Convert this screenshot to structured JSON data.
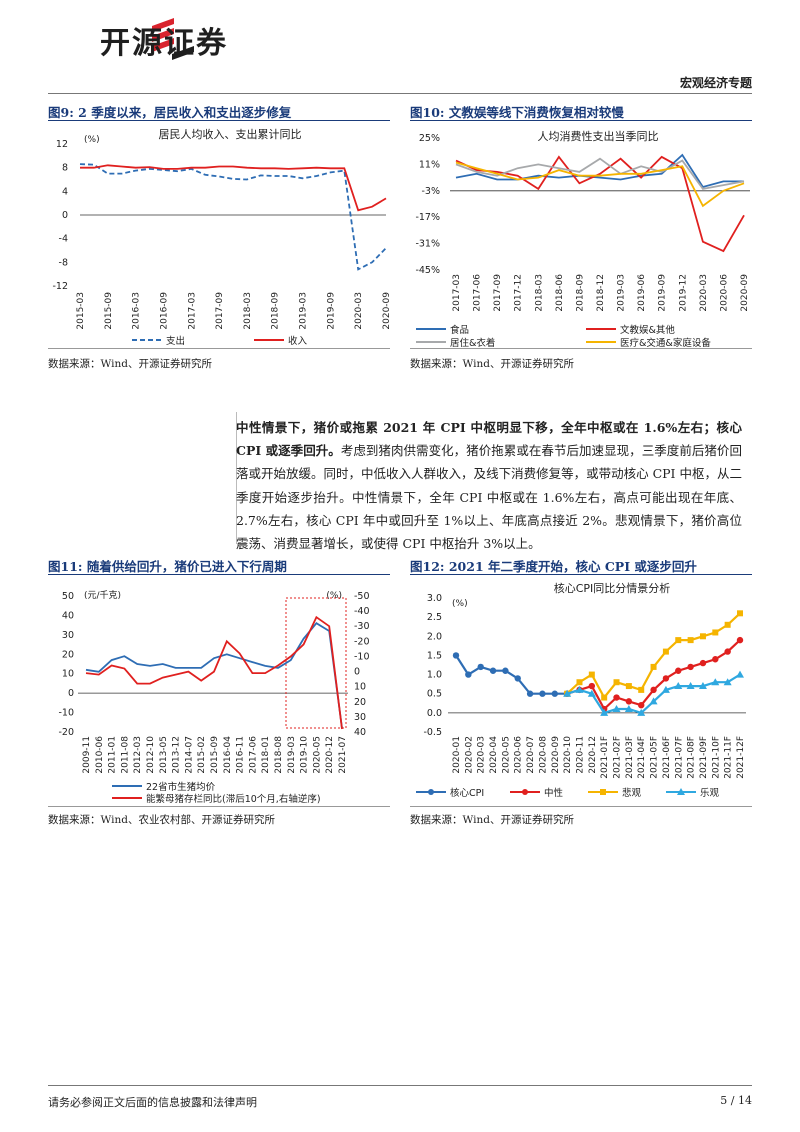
{
  "header": {
    "brand_name": "开源证券",
    "section_tag": "宏观经济专题"
  },
  "figures": {
    "fig9": {
      "title": "图9:  2 季度以来，居民收入和支出逐步修复",
      "source": "数据来源：Wind、开源证券研究所"
    },
    "fig10": {
      "title": "图10:  文教娱等线下消费恢复相对较慢",
      "source": "数据来源：Wind、开源证券研究所"
    },
    "fig11": {
      "title": "图11:  随着供给回升，猪价已进入下行周期",
      "source": "数据来源：Wind、农业农村部、开源证券研究所"
    },
    "fig12": {
      "title": "图12:  2021 年二季度开始，核心 CPI 或逐步回升",
      "source": "数据来源：Wind、开源证券研究所"
    }
  },
  "body": {
    "lead_bold": "中性情景下，猪价或拖累 2021 年 CPI 中枢明显下移，全年中枢或在 1.6%左右；核心 CPI 或逐季回升。",
    "text": "考虑到猪肉供需变化，猪价拖累或在春节后加速显现，三季度前后猪价回落或开始放缓。同时，中低收入人群收入，及线下消费修复等，或带动核心 CPI 中枢，从二季度开始逐步抬升。中性情景下，全年 CPI 中枢或在 1.6%左右，高点可能出现在年底、2.7%左右，核心 CPI 年中或回升至 1%以上、年底高点接近 2%。悲观情景下，猪价高位震荡、消费显著增长，或使得 CPI 中枢抬升 3%以上。"
  },
  "footer": {
    "disclaimer": "请务必参阅正文后面的信息披露和法律声明",
    "page": "5 / 14"
  },
  "chart_data": [
    {
      "id": "fig9",
      "type": "line",
      "title": "居民人均收入、支出累计同比",
      "unit": "(%)",
      "ylim": [
        -12,
        12
      ],
      "yticks": [
        "12",
        "8",
        "4",
        "0",
        "-4",
        "-8",
        "-12"
      ],
      "x": [
        "2015-03",
        "2015-06",
        "2015-09",
        "2015-12",
        "2016-03",
        "2016-06",
        "2016-09",
        "2016-12",
        "2017-03",
        "2017-06",
        "2017-09",
        "2017-12",
        "2018-03",
        "2018-06",
        "2018-09",
        "2018-12",
        "2019-03",
        "2019-06",
        "2019-09",
        "2019-12",
        "2020-03",
        "2020-06",
        "2020-09"
      ],
      "xtick_labels": [
        "2015-03",
        "2015-09",
        "2016-03",
        "2016-09",
        "2017-03",
        "2017-09",
        "2018-03",
        "2018-09",
        "2019-03",
        "2019-09",
        "2020-03",
        "2020-09"
      ],
      "series": [
        {
          "name": "支出",
          "color": "#2e6db4",
          "dash": true,
          "values": [
            8.6,
            8.5,
            7.0,
            7.0,
            7.5,
            7.8,
            7.6,
            7.4,
            7.8,
            6.8,
            6.5,
            6.1,
            6.0,
            6.7,
            6.6,
            6.6,
            6.2,
            6.6,
            7.2,
            7.5,
            -9.2,
            -8.0,
            -5.6
          ]
        },
        {
          "name": "收入",
          "color": "#e0201f",
          "dash": false,
          "values": [
            8.0,
            8.0,
            8.4,
            8.2,
            8.0,
            8.1,
            7.8,
            7.8,
            8.0,
            8.0,
            8.2,
            8.2,
            8.0,
            7.9,
            7.9,
            7.8,
            7.9,
            8.0,
            7.9,
            7.9,
            0.8,
            1.4,
            2.8
          ]
        }
      ]
    },
    {
      "id": "fig10",
      "type": "line",
      "title": "人均消费性支出当季同比",
      "ylim": [
        -45,
        25
      ],
      "yticks": [
        "25%",
        "11%",
        "-3%",
        "-17%",
        "-31%",
        "-45%"
      ],
      "x": [
        "2017-03",
        "2017-06",
        "2017-09",
        "2017-12",
        "2018-03",
        "2018-06",
        "2018-09",
        "2018-12",
        "2019-03",
        "2019-06",
        "2019-09",
        "2019-12",
        "2020-03",
        "2020-06",
        "2020-09"
      ],
      "series": [
        {
          "name": "食品",
          "color": "#2e6db4",
          "values": [
            4,
            6,
            3,
            3,
            5,
            4,
            5,
            4,
            3,
            5,
            6,
            16,
            -1,
            2,
            2
          ]
        },
        {
          "name": "文教娱&其他",
          "color": "#e0201f",
          "values": [
            13,
            8,
            7,
            5,
            -2,
            15,
            1,
            6,
            14,
            4,
            15,
            9,
            -30,
            -35,
            -16
          ]
        },
        {
          "name": "居住&衣着",
          "color": "#a7a9ab",
          "values": [
            11,
            7,
            5,
            9,
            11,
            9,
            7,
            14,
            6,
            10,
            7,
            13,
            -2,
            0,
            2
          ]
        },
        {
          "name": "医疗&交通&家庭设备",
          "color": "#f5b400",
          "values": [
            12,
            9,
            6,
            3,
            4,
            8,
            5,
            5,
            6,
            6,
            8,
            10,
            -11,
            -3,
            1
          ]
        }
      ]
    },
    {
      "id": "fig11",
      "type": "line",
      "unit_left": "(元/千克)",
      "unit_right": "(%)",
      "ylim_left": [
        -20,
        50
      ],
      "ylim_right": [
        40,
        -50
      ],
      "yticks_left": [
        "50",
        "40",
        "30",
        "20",
        "10",
        "0",
        "-10",
        "-20"
      ],
      "yticks_right": [
        "-50",
        "-40",
        "-30",
        "-20",
        "-10",
        "0",
        "10",
        "20",
        "30",
        "40"
      ],
      "x": [
        "2009-11",
        "2010-06",
        "2011-01",
        "2011-08",
        "2012-03",
        "2012-10",
        "2013-05",
        "2013-12",
        "2014-07",
        "2015-02",
        "2015-09",
        "2016-04",
        "2016-11",
        "2017-06",
        "2018-01",
        "2018-08",
        "2019-03",
        "2019-10",
        "2020-05",
        "2020-12",
        "2021-07"
      ],
      "series": [
        {
          "name": "22省市生猪均价",
          "color": "#2e6db4",
          "axis": "left",
          "values": [
            12,
            11,
            17,
            19,
            15,
            14,
            15,
            13,
            13,
            13,
            18,
            20,
            18,
            16,
            14,
            13,
            17,
            28,
            36,
            32,
            -18
          ]
        },
        {
          "name": "能繁母猪存栏同比(滞后10个月,右轴逆序)",
          "color": "#e0201f",
          "axis": "right",
          "values": [
            1,
            2,
            -4,
            -2,
            8,
            8,
            4,
            2,
            0,
            6,
            0,
            -20,
            -12,
            1,
            1,
            -4,
            -10,
            -18,
            -36,
            -30,
            38
          ]
        }
      ]
    },
    {
      "id": "fig12",
      "type": "line",
      "title": "核心CPI同比分情景分析",
      "unit": "(%)",
      "ylim": [
        -0.5,
        3.0
      ],
      "yticks": [
        "3.0",
        "2.5",
        "2.0",
        "1.5",
        "1.0",
        "0.5",
        "0.0",
        "-0.5"
      ],
      "x": [
        "2020-01",
        "2020-02",
        "2020-03",
        "2020-04",
        "2020-05",
        "2020-06",
        "2020-07",
        "2020-08",
        "2020-09",
        "2020-10",
        "2020-11",
        "2020-12",
        "2021-01F",
        "2021-02F",
        "2021-03F",
        "2021-04F",
        "2021-05F",
        "2021-06F",
        "2021-07F",
        "2021-08F",
        "2021-09F",
        "2021-10F",
        "2021-11F",
        "2021-12F"
      ],
      "series": [
        {
          "name": "核心CPI",
          "color": "#2e6db4",
          "values": [
            1.5,
            1.0,
            1.2,
            1.1,
            1.1,
            0.9,
            0.5,
            0.5,
            0.5,
            0.5,
            null,
            null,
            null,
            null,
            null,
            null,
            null,
            null,
            null,
            null,
            null,
            null,
            null,
            null
          ]
        },
        {
          "name": "中性",
          "color": "#e0201f",
          "values": [
            null,
            null,
            null,
            null,
            null,
            null,
            null,
            null,
            null,
            0.5,
            0.6,
            0.7,
            0.1,
            0.4,
            0.3,
            0.2,
            0.6,
            0.9,
            1.1,
            1.2,
            1.3,
            1.4,
            1.6,
            1.9
          ]
        },
        {
          "name": "悲观",
          "color": "#f5b400",
          "values": [
            null,
            null,
            null,
            null,
            null,
            null,
            null,
            null,
            null,
            0.5,
            0.8,
            1.0,
            0.4,
            0.8,
            0.7,
            0.6,
            1.2,
            1.6,
            1.9,
            1.9,
            2.0,
            2.1,
            2.3,
            2.6
          ]
        },
        {
          "name": "乐观",
          "color": "#2fa8e0",
          "values": [
            null,
            null,
            null,
            null,
            null,
            null,
            null,
            null,
            null,
            0.5,
            0.6,
            0.5,
            0.0,
            0.1,
            0.1,
            0.0,
            0.3,
            0.6,
            0.7,
            0.7,
            0.7,
            0.8,
            0.8,
            1.0
          ]
        }
      ]
    }
  ]
}
